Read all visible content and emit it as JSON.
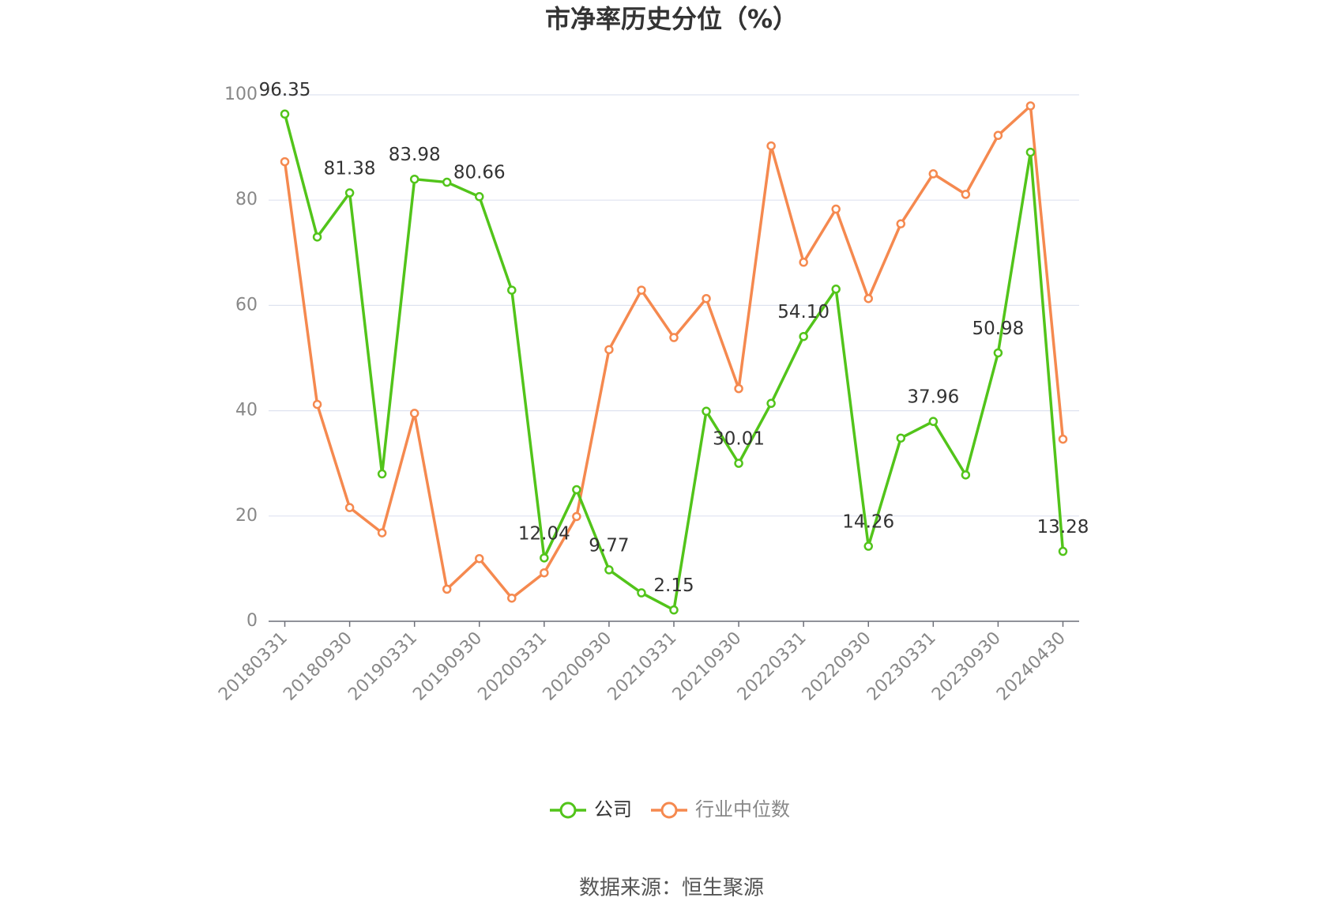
{
  "chart_data": {
    "type": "line",
    "title": "市净率历史分位（%）",
    "categories": [
      "20180331",
      null,
      "20180930",
      null,
      "20190331",
      null,
      "20190930",
      null,
      "20200331",
      null,
      "20200930",
      null,
      "20210331",
      null,
      "20210930",
      null,
      "20220331",
      null,
      "20220930",
      null,
      "20230331",
      null,
      "20230930",
      null,
      "20240430"
    ],
    "series": [
      {
        "name": "公司",
        "color": "#52c41a",
        "values": [
          96.35,
          73.0,
          81.38,
          28.0,
          83.98,
          83.4,
          80.66,
          62.9,
          12.04,
          25.0,
          9.77,
          5.4,
          2.15,
          39.9,
          30.01,
          41.4,
          54.1,
          63.1,
          14.26,
          34.8,
          37.96,
          27.8,
          50.98,
          89.1,
          13.28
        ],
        "value_labels": [
          "96.35",
          null,
          "81.38",
          null,
          "83.98",
          null,
          "80.66",
          null,
          "12.04",
          null,
          "9.77",
          null,
          "2.15",
          null,
          "30.01",
          null,
          "54.10",
          null,
          "14.26",
          null,
          "37.96",
          null,
          "50.98",
          null,
          "13.28"
        ]
      },
      {
        "name": "行业中位数",
        "color": "#f5894f",
        "values": [
          87.3,
          41.2,
          21.6,
          16.8,
          39.5,
          6.1,
          11.9,
          4.4,
          9.2,
          19.9,
          51.6,
          62.9,
          53.9,
          61.3,
          44.2,
          90.3,
          68.2,
          78.3,
          61.3,
          75.5,
          85.0,
          81.1,
          92.3,
          97.9,
          34.6
        ]
      }
    ],
    "ylim": [
      0,
      100
    ],
    "yticks": [
      0,
      20,
      40,
      60,
      80,
      100
    ],
    "grid": true,
    "legend": "bottom",
    "source": "数据来源：恒生聚源"
  }
}
